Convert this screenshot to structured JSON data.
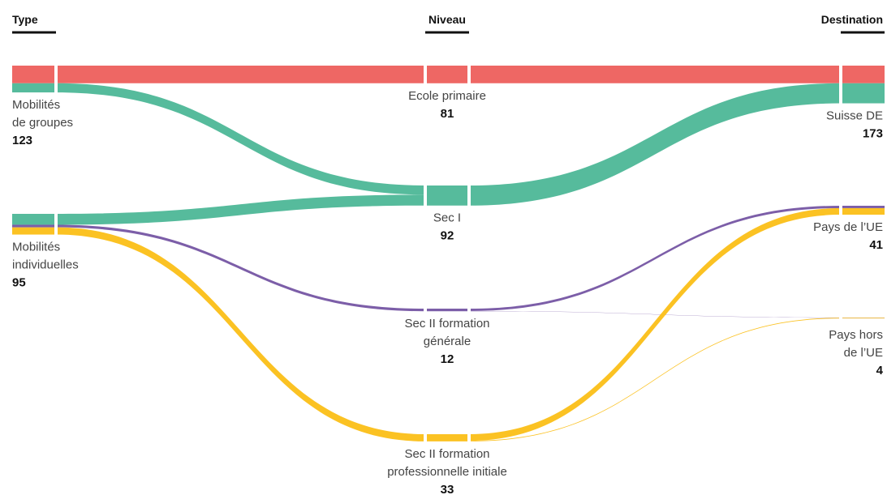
{
  "chart_data": {
    "type": "sankey",
    "columns": [
      "Type",
      "Niveau",
      "Destination"
    ],
    "colors": {
      "ecole_primaire": "#ee6764",
      "sec_i": "#56bb9c",
      "sec_ii_generale": "#7c5ea8",
      "sec_ii_pro": "#fbc223"
    },
    "nodes": {
      "type": [
        {
          "id": "groupes",
          "label_lines": [
            "Mobilités",
            "de groupes"
          ],
          "value": 123
        },
        {
          "id": "individuelles",
          "label_lines": [
            "Mobilités",
            "individuelles"
          ],
          "value": 95
        }
      ],
      "niveau": [
        {
          "id": "primaire",
          "label_lines": [
            "Ecole primaire"
          ],
          "value": 81,
          "color_key": "ecole_primaire"
        },
        {
          "id": "sec1",
          "label_lines": [
            "Sec I"
          ],
          "value": 92,
          "color_key": "sec_i"
        },
        {
          "id": "sec2gen",
          "label_lines": [
            "Sec II formation",
            "générale"
          ],
          "value": 12,
          "color_key": "sec_ii_generale"
        },
        {
          "id": "sec2pro",
          "label_lines": [
            "Sec II formation",
            "professionnelle initiale"
          ],
          "value": 33,
          "color_key": "sec_ii_pro"
        }
      ],
      "destination": [
        {
          "id": "suisse",
          "label_lines": [
            "Suisse DE"
          ],
          "value": 173
        },
        {
          "id": "ue",
          "label_lines": [
            "Pays de l’UE"
          ],
          "value": 41
        },
        {
          "id": "horsue",
          "label_lines": [
            "Pays hors",
            "de l’UE"
          ],
          "value": 4
        }
      ]
    },
    "links_type_niveau": [
      {
        "source": "groupes",
        "target": "primaire",
        "value": 81
      },
      {
        "source": "groupes",
        "target": "sec1",
        "value": 42
      },
      {
        "source": "individuelles",
        "target": "sec1",
        "value": 50
      },
      {
        "source": "individuelles",
        "target": "sec2gen",
        "value": 12
      },
      {
        "source": "individuelles",
        "target": "sec2pro",
        "value": 33
      }
    ],
    "links_niveau_destination": [
      {
        "source": "primaire",
        "target": "suisse",
        "value": 81
      },
      {
        "source": "sec1",
        "target": "suisse",
        "value": 92
      },
      {
        "source": "sec2gen",
        "target": "ue",
        "value": 11
      },
      {
        "source": "sec2gen",
        "target": "horsue",
        "value": 1
      },
      {
        "source": "sec2pro",
        "target": "ue",
        "value": 30
      },
      {
        "source": "sec2pro",
        "target": "horsue",
        "value": 3
      }
    ]
  }
}
